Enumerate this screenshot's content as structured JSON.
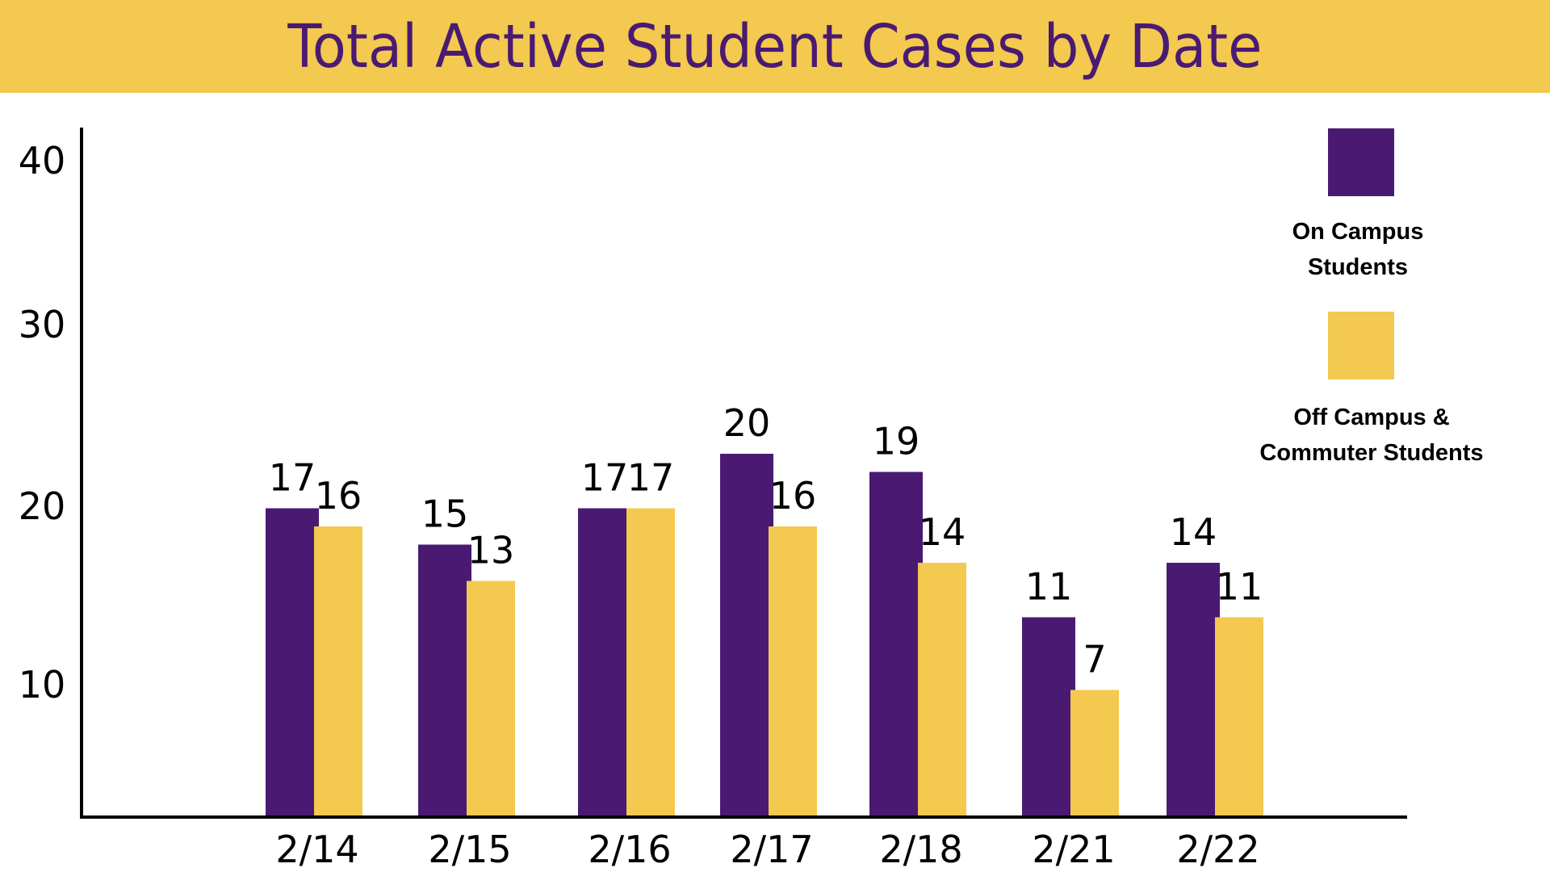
{
  "title": "Total Active Student Cases by Date",
  "colors": {
    "banner": "#f3c94f",
    "title_text": "#4a1a73",
    "on_campus": "#4a1a73",
    "off_campus": "#f3c94f",
    "axis": "#000000"
  },
  "legend": {
    "on_campus_line1": "On Campus",
    "on_campus_line2": "Students",
    "off_campus_line1": "Off Campus &",
    "off_campus_line2": "Commuter Students"
  },
  "chart_data": {
    "type": "bar",
    "categories": [
      "2/14",
      "2/15",
      "2/16",
      "2/17",
      "2/18",
      "2/21",
      "2/22"
    ],
    "series": [
      {
        "name": "On Campus Students",
        "values": [
          17,
          15,
          17,
          20,
          19,
          11,
          14
        ]
      },
      {
        "name": "Off Campus & Commuter Students",
        "values": [
          16,
          13,
          17,
          16,
          14,
          7,
          11
        ]
      }
    ],
    "y_ticks": [
      10,
      20,
      30,
      40
    ],
    "legend_position": "top-right",
    "grid": false
  }
}
